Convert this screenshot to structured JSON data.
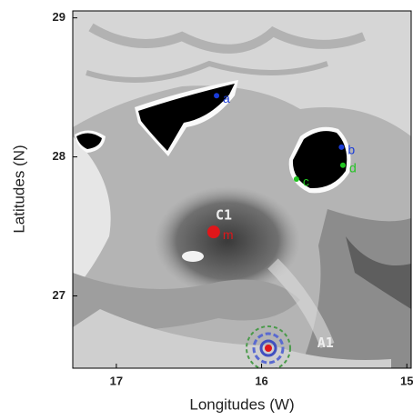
{
  "axes": {
    "xlabel": "Longitudes (W)",
    "ylabel": "Latitudes (N)",
    "xlim": [
      17.3,
      14.97
    ],
    "ylim": [
      26.48,
      29.05
    ],
    "xticks": [
      17,
      16,
      15
    ],
    "yticks": [
      29,
      28,
      27
    ]
  },
  "points": [
    {
      "label": "a",
      "lon": 16.31,
      "lat": 28.44,
      "color": "#1a3cd8"
    },
    {
      "label": "b",
      "lon": 15.45,
      "lat": 28.07,
      "color": "#1a3cd8"
    },
    {
      "label": "d",
      "lon": 15.44,
      "lat": 27.94,
      "color": "#22c422"
    },
    {
      "label": "c",
      "lon": 15.76,
      "lat": 27.84,
      "color": "#22c422"
    },
    {
      "label": "m",
      "lon": 16.33,
      "lat": 27.46,
      "color": "#e0161a"
    }
  ],
  "labels": [
    {
      "text": "C1",
      "lon": 16.26,
      "lat": 27.58
    },
    {
      "text": "A1",
      "lon": 15.56,
      "lat": 26.66
    }
  ]
}
